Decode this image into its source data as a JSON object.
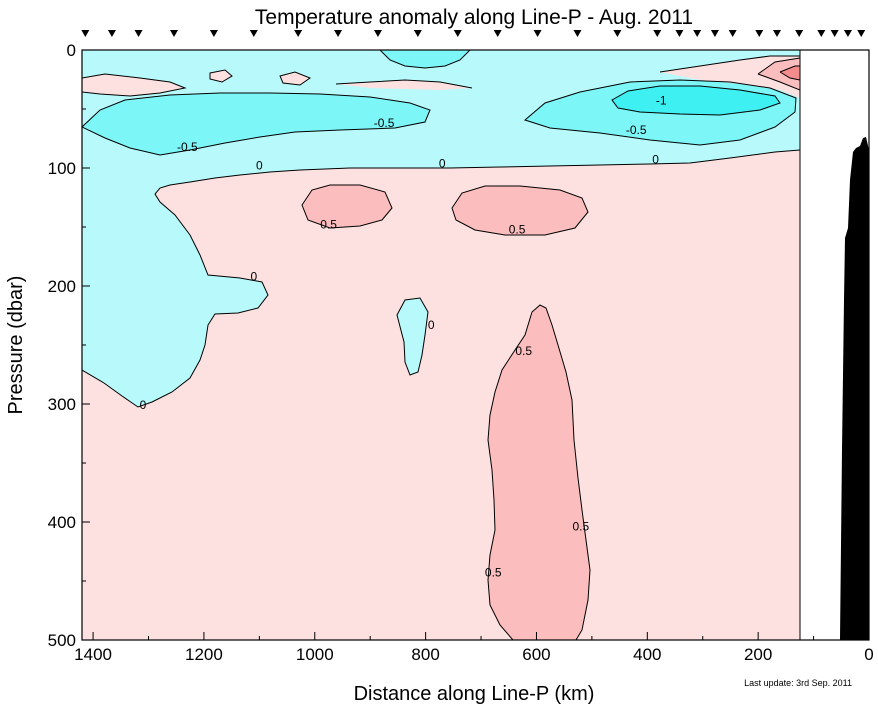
{
  "chart_data": {
    "type": "heatmap",
    "title": "Temperature anomaly along Line-P - Aug. 2011",
    "xlabel": "Distance along Line-P (km)",
    "ylabel": "Pressure (dbar)",
    "xlim": [
      1420,
      0
    ],
    "ylim": [
      0,
      500
    ],
    "x_ticks": [
      1400,
      1200,
      1000,
      800,
      600,
      400,
      200,
      0
    ],
    "y_ticks": [
      0,
      100,
      200,
      300,
      400,
      500
    ],
    "x_minor_step": 100,
    "y_minor_step": 50,
    "data_extent_km": 125,
    "station_markers_km": [
      1414,
      1366,
      1318,
      1254,
      1182,
      1110,
      1030,
      958,
      886,
      814,
      742,
      670,
      598,
      526,
      454,
      382,
      342,
      310,
      278,
      246,
      198,
      166,
      126,
      86,
      62,
      38,
      14
    ],
    "contour_levels": [
      -1,
      -0.5,
      0,
      0.5
    ],
    "fill_colors": {
      "below_-1": "#3ff0f2",
      "-1_to_-0.5": "#7df6f8",
      "-0.5_to_0": "#b8fafb",
      "0_to_0.5": "#fde1e1",
      "0.5_to_1": "#fbbdbd",
      "above_1": "#f48c8e"
    },
    "contour_labels": [
      {
        "value": "-0.5",
        "km": 1230,
        "dbar": 82
      },
      {
        "value": "-0.5",
        "km": 875,
        "dbar": 62
      },
      {
        "value": "-0.5",
        "km": 420,
        "dbar": 68
      },
      {
        "value": "-1",
        "km": 375,
        "dbar": 43
      },
      {
        "value": "0",
        "km": 1100,
        "dbar": 98
      },
      {
        "value": "0",
        "km": 770,
        "dbar": 96
      },
      {
        "value": "0",
        "km": 385,
        "dbar": 93
      },
      {
        "value": "0",
        "km": 1110,
        "dbar": 192
      },
      {
        "value": "0",
        "km": 1310,
        "dbar": 301
      },
      {
        "value": "0",
        "km": 790,
        "dbar": 233
      },
      {
        "value": "0.5",
        "km": 975,
        "dbar": 148
      },
      {
        "value": "0.5",
        "km": 635,
        "dbar": 152
      },
      {
        "value": "0.5",
        "km": 623,
        "dbar": 255
      },
      {
        "value": "0.5",
        "km": 520,
        "dbar": 404
      },
      {
        "value": "0.5",
        "km": 678,
        "dbar": 443
      }
    ],
    "bathymetry_note": "seafloor rises from >500 dbar at ~50 km to ~84 dbar near 10 km"
  },
  "footer": {
    "last_update": "Last update: 3rd Sep. 2011"
  }
}
